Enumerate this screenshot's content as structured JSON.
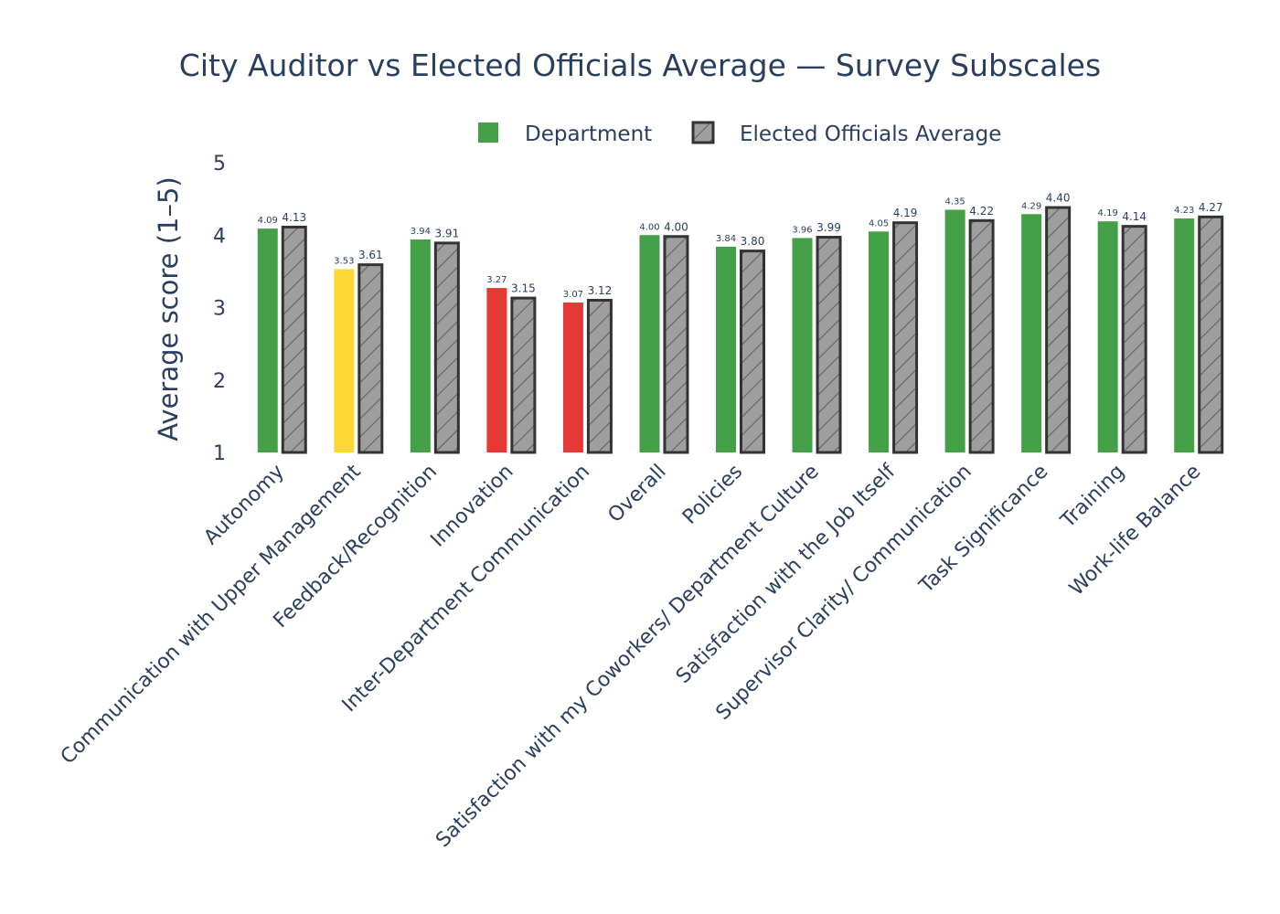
{
  "chart_data": {
    "type": "bar",
    "title": "City Auditor vs Elected Officials Average — Survey Subscales",
    "xlabel": "",
    "ylabel": "Average score (1–5)",
    "ylim": [
      1,
      5
    ],
    "yticks": [
      "1",
      "2",
      "3",
      "4",
      "5"
    ],
    "legend_placement": "top-center",
    "grid": false,
    "categories": [
      "Autonomy",
      "Communication with Upper Management",
      "Feedback/Recognition",
      "Innovation",
      "Inter-Department Communication",
      "Overall",
      "Policies",
      "Satisfaction with my Coworkers/ Department Culture",
      "Satisfaction with the Job Itself",
      "Supervisor Clarity/ Communication",
      "Task Significance",
      "Training",
      "Work-life Balance"
    ],
    "series": [
      {
        "name": "Department",
        "values": [
          4.09,
          3.53,
          3.94,
          3.27,
          3.07,
          4.0,
          3.84,
          3.96,
          4.05,
          4.35,
          4.29,
          4.19,
          4.23
        ],
        "labels": [
          "4.09",
          "3.53",
          "3.94",
          "3.27",
          "3.07",
          "4.00",
          "3.84",
          "3.96",
          "4.05",
          "4.35",
          "4.29",
          "4.19",
          "4.23"
        ],
        "colors": [
          "#43a047",
          "#fdd835",
          "#43a047",
          "#e53935",
          "#e53935",
          "#43a047",
          "#43a047",
          "#43a047",
          "#43a047",
          "#43a047",
          "#43a047",
          "#43a047",
          "#43a047"
        ]
      },
      {
        "name": "Elected Officials Average",
        "values": [
          4.13,
          3.61,
          3.91,
          3.15,
          3.12,
          4.0,
          3.8,
          3.99,
          4.19,
          4.22,
          4.4,
          4.14,
          4.27
        ],
        "labels": [
          "4.13",
          "3.61",
          "3.91",
          "3.15",
          "3.12",
          "4.00",
          "3.80",
          "3.99",
          "4.19",
          "4.22",
          "4.40",
          "4.14",
          "4.27"
        ],
        "color": "#9e9e9e",
        "outline": "#333333",
        "pattern": "diagonal-hatch"
      }
    ],
    "legend_swatch_color": "#43a047"
  }
}
